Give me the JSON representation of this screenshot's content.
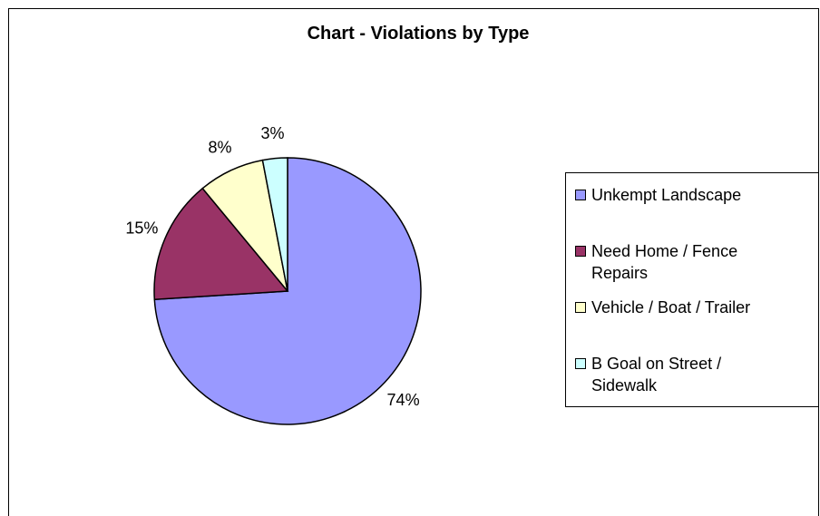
{
  "chart_data": {
    "type": "pie",
    "title": "Chart - Violations by Type",
    "categories": [
      "Unkempt Landscape",
      "Need Home / Fence Repairs",
      "Vehicle / Boat / Trailer",
      "B Goal on Street / Sidewalk"
    ],
    "values": [
      74,
      15,
      8,
      3
    ],
    "labels": [
      "74%",
      "15%",
      "8%",
      "3%"
    ],
    "colors": [
      "#9999ff",
      "#993366",
      "#ffffcc",
      "#ccffff"
    ],
    "legend_position": "right",
    "legend": [
      {
        "lines": [
          "Unkempt Landscape"
        ]
      },
      {
        "lines": [
          "Need Home / Fence",
          "Repairs"
        ]
      },
      {
        "lines": [
          "Vehicle / Boat / Trailer"
        ]
      },
      {
        "lines": [
          "B Goal on Street /",
          "Sidewalk"
        ]
      }
    ]
  }
}
